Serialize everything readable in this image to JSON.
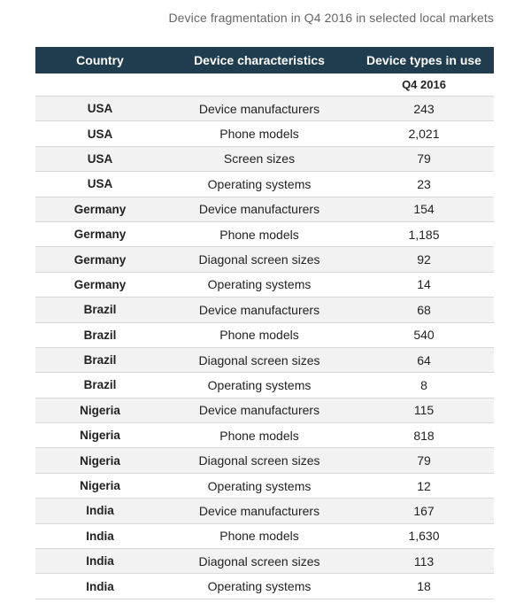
{
  "title": "Device fragmentation in Q4 2016 in selected local markets",
  "table": {
    "headers": [
      "Country",
      "Device characteristics",
      "Device types in use"
    ],
    "subheader": [
      "",
      "",
      "Q4 2016"
    ],
    "rows": [
      [
        "USA",
        "Device manufacturers",
        "243"
      ],
      [
        "USA",
        "Phone models",
        "2,021"
      ],
      [
        "USA",
        "Screen sizes",
        "79"
      ],
      [
        "USA",
        "Operating systems",
        "23"
      ],
      [
        "Germany",
        "Device manufacturers",
        "154"
      ],
      [
        "Germany",
        "Phone models",
        "1,185"
      ],
      [
        "Germany",
        "Diagonal screen sizes",
        "92"
      ],
      [
        "Germany",
        "Operating systems",
        "14"
      ],
      [
        "Brazil",
        "Device manufacturers",
        "68"
      ],
      [
        "Brazil",
        "Phone models",
        "540"
      ],
      [
        "Brazil",
        "Diagonal screen sizes",
        "64"
      ],
      [
        "Brazil",
        "Operating systems",
        "8"
      ],
      [
        "Nigeria",
        "Device manufacturers",
        "115"
      ],
      [
        "Nigeria",
        "Phone models",
        "818"
      ],
      [
        "Nigeria",
        "Diagonal screen sizes",
        "79"
      ],
      [
        "Nigeria",
        "Operating systems",
        "12"
      ],
      [
        "India",
        "Device manufacturers",
        "167"
      ],
      [
        "India",
        "Phone models",
        "1,630"
      ],
      [
        "India",
        "Diagonal screen sizes",
        "113"
      ],
      [
        "India",
        "Operating systems",
        "18"
      ]
    ]
  },
  "colors": {
    "header_bg": "#1f3d4f",
    "header_text": "#ffffff",
    "row_alt_bg": "#f2f2f2",
    "title_text": "#666666"
  }
}
